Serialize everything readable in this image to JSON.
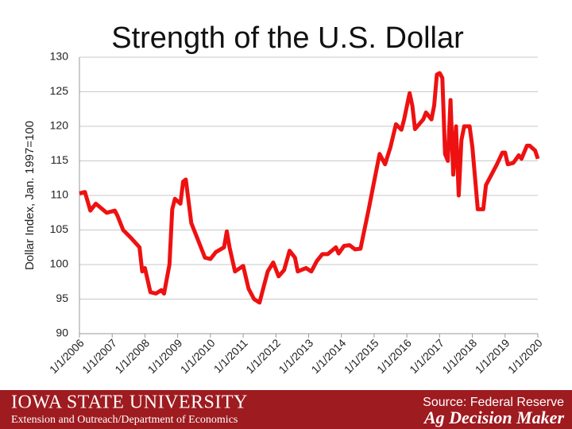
{
  "chart_data": {
    "type": "line",
    "title": "Strength of the U.S. Dollar",
    "y_label": "Dollar Index, Jan. 1997=100",
    "x": [
      "2006-01",
      "2006-03",
      "2006-05",
      "2006-07",
      "2006-11",
      "2007-02",
      "2007-03",
      "2007-05",
      "2007-08",
      "2007-11",
      "2007-12",
      "2008-01",
      "2008-03",
      "2008-05",
      "2008-07",
      "2008-08",
      "2008-10",
      "2008-11",
      "2008-12",
      "2009-02",
      "2009-03",
      "2009-04",
      "2009-06",
      "2009-08",
      "2009-11",
      "2010-01",
      "2010-03",
      "2010-06",
      "2010-07",
      "2010-08",
      "2010-10",
      "2011-01",
      "2011-03",
      "2011-05",
      "2011-07",
      "2011-08",
      "2011-10",
      "2011-12",
      "2012-02",
      "2012-04",
      "2012-06",
      "2012-08",
      "2012-09",
      "2012-12",
      "2013-02",
      "2013-04",
      "2013-06",
      "2013-08",
      "2013-11",
      "2013-12",
      "2014-02",
      "2014-04",
      "2014-06",
      "2014-08",
      "2014-09",
      "2014-11",
      "2015-01",
      "2015-03",
      "2015-05",
      "2015-07",
      "2015-09",
      "2015-11",
      "2015-12",
      "2016-02",
      "2016-03",
      "2016-04",
      "2016-07",
      "2016-08",
      "2016-10",
      "2016-11",
      "2016-12",
      "2017-01",
      "2017-02",
      "2017-03",
      "2017-04",
      "2017-05",
      "2017-06",
      "2017-07",
      "2017-08",
      "2017-09",
      "2017-10",
      "2017-12",
      "2018-01",
      "2018-03",
      "2018-05",
      "2018-06",
      "2018-08",
      "2018-10",
      "2018-12",
      "2019-01",
      "2019-02",
      "2019-04",
      "2019-06",
      "2019-07",
      "2019-09",
      "2019-10",
      "2019-12",
      "2020-01"
    ],
    "series": [
      {
        "name": "Dollar Index",
        "color": "#ee1111",
        "values": [
          110.3,
          110.5,
          107.8,
          108.8,
          107.5,
          107.8,
          107,
          105,
          103.8,
          102.5,
          99,
          99.5,
          96,
          95.8,
          96.3,
          95.8,
          100,
          108,
          109.5,
          108.8,
          112,
          112.3,
          106,
          104,
          101,
          100.8,
          101.8,
          102.5,
          104.8,
          102.5,
          99,
          99.8,
          96.5,
          95,
          94.5,
          96,
          99,
          100.3,
          98.3,
          99.2,
          102,
          101,
          99,
          99.5,
          99,
          100.5,
          101.5,
          101.5,
          102.5,
          101.6,
          102.7,
          102.8,
          102.2,
          102.3,
          104.2,
          108,
          112,
          116,
          114.5,
          117,
          120.3,
          119.5,
          121,
          124.8,
          123,
          119.6,
          121,
          122,
          121,
          123,
          127.5,
          127.7,
          127,
          116,
          115,
          123.8,
          113,
          120,
          110,
          118,
          120,
          120,
          117,
          108,
          108,
          111.5,
          113,
          114.5,
          116.2,
          116.2,
          114.5,
          114.7,
          115.8,
          115.3,
          117.2,
          117.2,
          116.5,
          115.3
        ]
      }
    ],
    "xlim": [
      "2006-01",
      "2020-01"
    ],
    "xticks": [
      {
        "value": "2006-01",
        "label": "1/1/2006"
      },
      {
        "value": "2007-01",
        "label": "1/1/2007"
      },
      {
        "value": "2008-01",
        "label": "1/1/2008"
      },
      {
        "value": "2009-01",
        "label": "1/1/2009"
      },
      {
        "value": "2010-01",
        "label": "1/1/2010"
      },
      {
        "value": "2011-01",
        "label": "1/1/2011"
      },
      {
        "value": "2012-01",
        "label": "1/1/2012"
      },
      {
        "value": "2013-01",
        "label": "1/1/2013"
      },
      {
        "value": "2014-01",
        "label": "1/1/2014"
      },
      {
        "value": "2015-01",
        "label": "1/1/2015"
      },
      {
        "value": "2016-01",
        "label": "1/1/2016"
      },
      {
        "value": "2017-01",
        "label": "1/1/2017"
      },
      {
        "value": "2018-01",
        "label": "1/1/2018"
      },
      {
        "value": "2019-01",
        "label": "1/1/2019"
      },
      {
        "value": "2020-01",
        "label": "1/1/2020"
      }
    ],
    "ylim": [
      90,
      130
    ],
    "yticks": [
      90,
      95,
      100,
      105,
      110,
      115,
      120,
      125,
      130
    ],
    "grid": true
  },
  "footer": {
    "university": "IOWA STATE UNIVERSITY",
    "department": "Extension and Outreach/Department of Economics",
    "source": "Source: Federal Reserve",
    "brand": "Ag Decision Maker"
  }
}
